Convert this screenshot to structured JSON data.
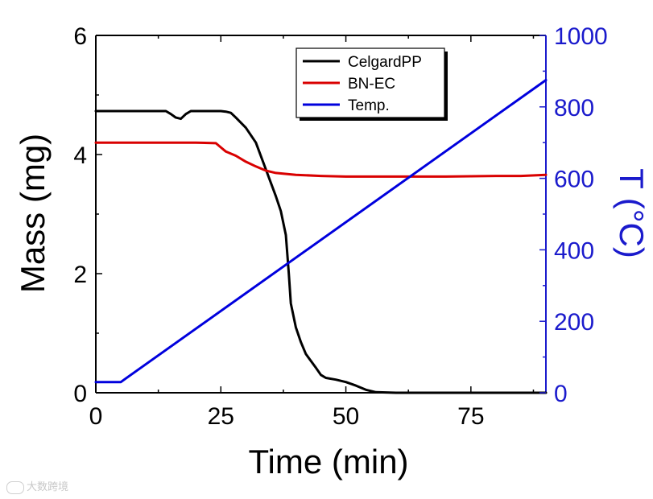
{
  "chart_data": {
    "type": "line",
    "title": "",
    "xlabel": "Time (min)",
    "ylabel": "Mass (mg)",
    "y2label": "T (°C)",
    "xlim": [
      0,
      90
    ],
    "ylim": [
      0,
      6
    ],
    "y2lim": [
      0,
      1000
    ],
    "x_ticks": [
      "0",
      "25",
      "50",
      "75"
    ],
    "y_ticks": [
      "0",
      "2",
      "4",
      "6"
    ],
    "y2_ticks": [
      "0",
      "200",
      "400",
      "600",
      "800",
      "1000"
    ],
    "legend": {
      "position": "top-right",
      "entries": [
        "CelgardPP",
        "BN-EC",
        "Temp."
      ]
    },
    "series": [
      {
        "name": "CelgardPP",
        "axis": "left",
        "color": "#000000",
        "points": [
          [
            0,
            4.73
          ],
          [
            10,
            4.73
          ],
          [
            14,
            4.73
          ],
          [
            15,
            4.68
          ],
          [
            16,
            4.62
          ],
          [
            17,
            4.6
          ],
          [
            18,
            4.68
          ],
          [
            19,
            4.73
          ],
          [
            22,
            4.73
          ],
          [
            25,
            4.73
          ],
          [
            26,
            4.72
          ],
          [
            27,
            4.7
          ],
          [
            28,
            4.62
          ],
          [
            30,
            4.45
          ],
          [
            32,
            4.2
          ],
          [
            34,
            3.75
          ],
          [
            36,
            3.3
          ],
          [
            37,
            3.05
          ],
          [
            38,
            2.65
          ],
          [
            38.6,
            2.0
          ],
          [
            39,
            1.5
          ],
          [
            40,
            1.1
          ],
          [
            41,
            0.85
          ],
          [
            42,
            0.65
          ],
          [
            44,
            0.42
          ],
          [
            45,
            0.3
          ],
          [
            46,
            0.25
          ],
          [
            48,
            0.22
          ],
          [
            50,
            0.18
          ],
          [
            52,
            0.12
          ],
          [
            54,
            0.05
          ],
          [
            56,
            0.01
          ],
          [
            60,
            0.0
          ],
          [
            90,
            0.0
          ]
        ]
      },
      {
        "name": "BN-EC",
        "axis": "left",
        "color": "#d90000",
        "points": [
          [
            0,
            4.2
          ],
          [
            10,
            4.2
          ],
          [
            20,
            4.2
          ],
          [
            24,
            4.19
          ],
          [
            25,
            4.12
          ],
          [
            26,
            4.05
          ],
          [
            28,
            3.98
          ],
          [
            30,
            3.88
          ],
          [
            32,
            3.8
          ],
          [
            34,
            3.73
          ],
          [
            36,
            3.69
          ],
          [
            40,
            3.66
          ],
          [
            45,
            3.64
          ],
          [
            50,
            3.63
          ],
          [
            60,
            3.63
          ],
          [
            70,
            3.63
          ],
          [
            80,
            3.64
          ],
          [
            85,
            3.64
          ],
          [
            90,
            3.66
          ]
        ]
      },
      {
        "name": "Temp.",
        "axis": "right",
        "color": "#0000dd",
        "points": [
          [
            0,
            30
          ],
          [
            5,
            30
          ],
          [
            6,
            40
          ],
          [
            90,
            875
          ]
        ]
      }
    ]
  },
  "watermark": {
    "text": "大数跨境"
  }
}
